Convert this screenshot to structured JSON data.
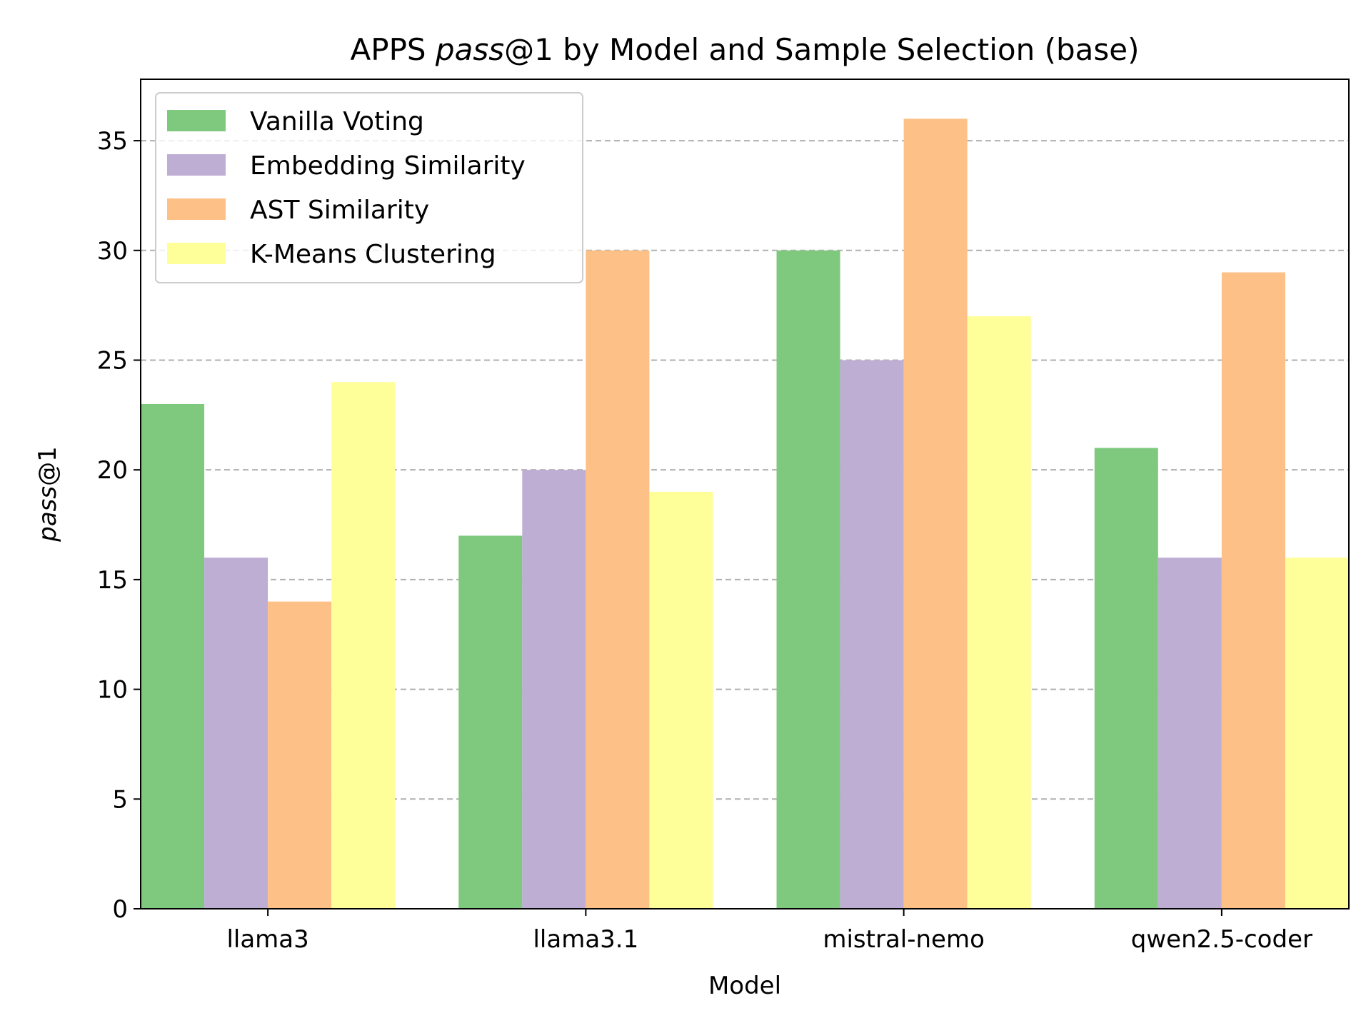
{
  "chart_data": {
    "type": "bar",
    "title_prefix": "APPS ",
    "title_italic": "pass",
    "title_suffix": "@1 by Model and Sample Selection (base)",
    "xlabel": "Model",
    "ylabel_italic": "pass",
    "ylabel_suffix": "@1",
    "categories": [
      "llama3",
      "llama3.1",
      "mistral-nemo",
      "qwen2.5-coder"
    ],
    "ylim": [
      0,
      37.8
    ],
    "yticks": [
      0,
      5,
      10,
      15,
      20,
      25,
      30,
      35
    ],
    "grid": "y-dashed",
    "legend_position": "top-left",
    "series": [
      {
        "name": "Vanilla Voting",
        "color": "#7fc97f",
        "values": [
          23,
          17,
          30,
          21
        ]
      },
      {
        "name": "Embedding Similarity",
        "color": "#beaed4",
        "values": [
          16,
          20,
          25,
          16
        ]
      },
      {
        "name": "AST Similarity",
        "color": "#fdc086",
        "values": [
          14,
          30,
          36,
          29
        ]
      },
      {
        "name": "K-Means Clustering",
        "color": "#ffff99",
        "values": [
          24,
          19,
          27,
          16
        ]
      }
    ]
  }
}
